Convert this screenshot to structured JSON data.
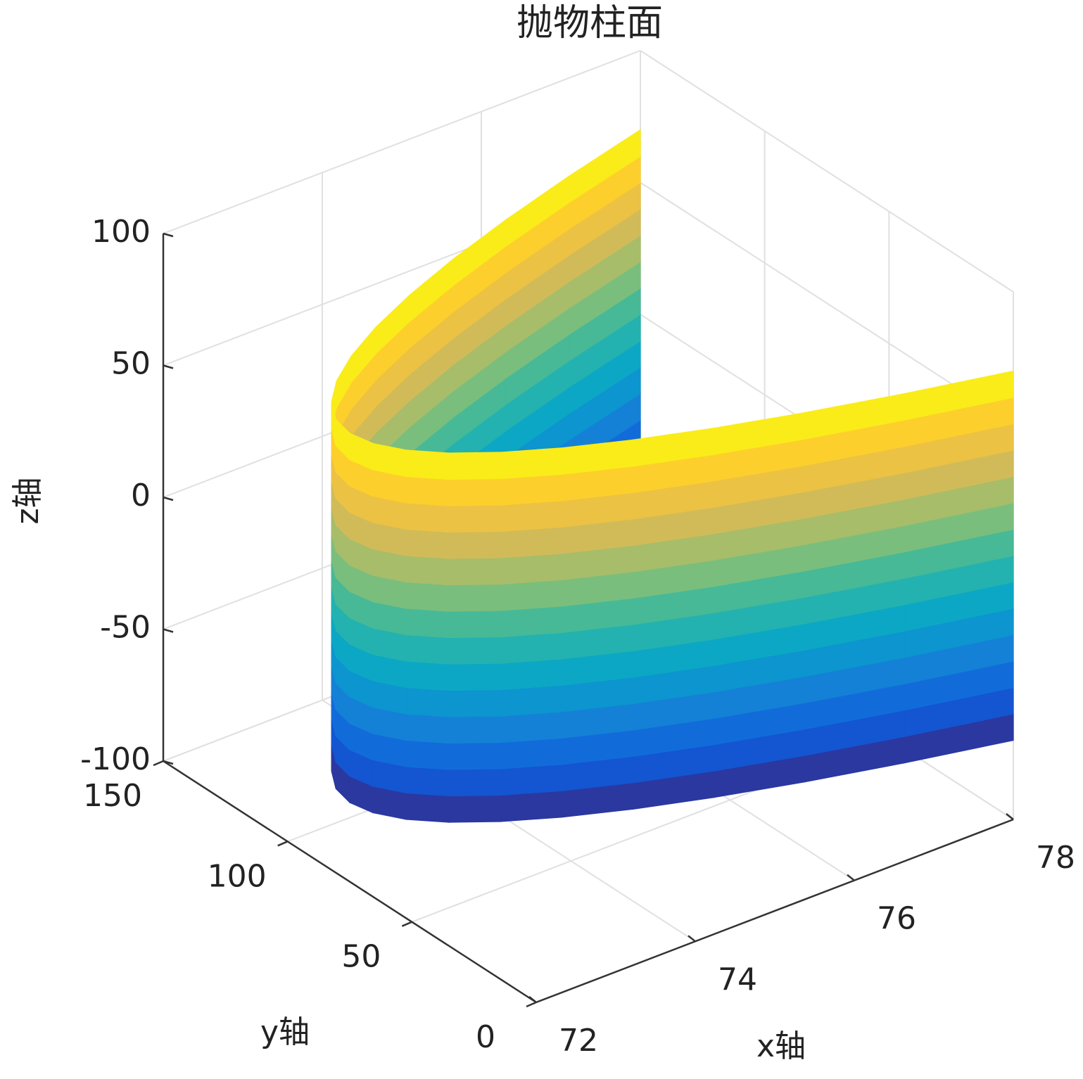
{
  "chart_data": {
    "type": "surface3d",
    "title": "抛物柱面",
    "xlabel": "x轴",
    "ylabel": "y轴",
    "zlabel": "z轴",
    "xlim": [
      72,
      78
    ],
    "ylim": [
      0,
      150
    ],
    "zlim": [
      -100,
      100
    ],
    "xticks": [
      72,
      74,
      76,
      78
    ],
    "yticks": [
      0,
      50,
      100,
      150
    ],
    "zticks": [
      -100,
      -50,
      0,
      50,
      100
    ],
    "grid": true,
    "colormap": [
      "#352a87",
      "#0f5cdd",
      "#1481d6",
      "#06a4ca",
      "#2eb7a4",
      "#87bf77",
      "#d1bb59",
      "#fec832",
      "#f9fb0e"
    ],
    "surface": {
      "x": [
        78,
        76.86,
        75.84,
        74.94,
        74.16,
        73.5,
        72.96,
        72.54,
        72.24,
        72.06,
        72,
        72.06,
        72.24,
        72.54,
        72.96,
        73.5,
        74.16,
        74.94,
        75.84,
        76.86,
        78
      ],
      "y": [
        0,
        7.5,
        15,
        22.5,
        30,
        37.5,
        45,
        52.5,
        60,
        67.5,
        75,
        82.5,
        90,
        97.5,
        105,
        112.5,
        120,
        127.5,
        135,
        142.5,
        150
      ],
      "z": [
        -70,
        -60,
        -50,
        -40,
        -30,
        -20,
        -10,
        0,
        10,
        20,
        30,
        40,
        50,
        60,
        70
      ]
    }
  }
}
